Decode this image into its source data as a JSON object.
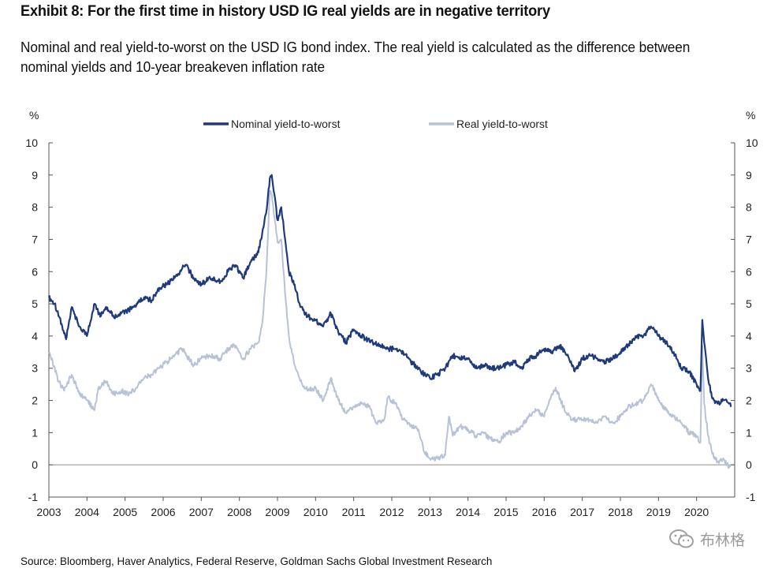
{
  "header": {
    "title": "Exhibit 8: For the first time in history USD IG real yields are in negative territory",
    "subtitle": "Nominal and real yield-to-worst on the USD IG bond index. The real yield is calculated as the difference between nominal yields and 10-year breakeven inflation rate"
  },
  "source": "Source: Bloomberg, Haver Analytics, Federal Reserve, Goldman Sachs Global Investment Research",
  "watermark": "布林格",
  "colors": {
    "nominal": "#1f3a7a",
    "real": "#b8c2d6",
    "axis": "#555555"
  },
  "chart_data": {
    "type": "line",
    "ylabel_left": "%",
    "ylabel_right": "%",
    "ylim": [
      -1,
      10
    ],
    "yticks": [
      -1,
      0,
      1,
      2,
      3,
      4,
      5,
      6,
      7,
      8,
      9,
      10
    ],
    "xlim": [
      2003,
      2021
    ],
    "xticks": [
      "2003",
      "2004",
      "2005",
      "2006",
      "2007",
      "2008",
      "2009",
      "2010",
      "2011",
      "2012",
      "2013",
      "2014",
      "2015",
      "2016",
      "2017",
      "2018",
      "2019",
      "2020"
    ],
    "legend_position": "top-center",
    "series": [
      {
        "name": "Nominal yield-to-worst",
        "x": [
          2003.0,
          2003.15,
          2003.35,
          2003.45,
          2003.6,
          2003.8,
          2004.0,
          2004.2,
          2004.35,
          2004.5,
          2004.7,
          2004.9,
          2005.1,
          2005.3,
          2005.5,
          2005.7,
          2005.9,
          2006.1,
          2006.3,
          2006.5,
          2006.6,
          2006.8,
          2007.0,
          2007.2,
          2007.5,
          2007.7,
          2007.9,
          2008.1,
          2008.3,
          2008.5,
          2008.6,
          2008.7,
          2008.8,
          2008.85,
          2008.92,
          2009.0,
          2009.1,
          2009.2,
          2009.3,
          2009.45,
          2009.6,
          2009.8,
          2010.0,
          2010.2,
          2010.4,
          2010.6,
          2010.8,
          2011.0,
          2011.2,
          2011.5,
          2011.7,
          2011.9,
          2012.1,
          2012.3,
          2012.5,
          2012.7,
          2012.85,
          2013.0,
          2013.2,
          2013.4,
          2013.6,
          2013.8,
          2014.0,
          2014.2,
          2014.4,
          2014.6,
          2014.8,
          2015.0,
          2015.2,
          2015.4,
          2015.6,
          2015.8,
          2016.0,
          2016.2,
          2016.4,
          2016.6,
          2016.8,
          2017.0,
          2017.2,
          2017.4,
          2017.6,
          2017.8,
          2018.0,
          2018.2,
          2018.4,
          2018.6,
          2018.8,
          2018.9,
          2019.0,
          2019.2,
          2019.4,
          2019.6,
          2019.8,
          2020.0,
          2020.1,
          2020.15,
          2020.2,
          2020.3,
          2020.4,
          2020.55,
          2020.7,
          2020.85,
          2020.9
        ],
        "values": [
          5.2,
          5.0,
          4.3,
          3.9,
          4.9,
          4.3,
          4.0,
          5.0,
          4.6,
          4.9,
          4.6,
          4.7,
          4.8,
          5.0,
          5.2,
          5.1,
          5.5,
          5.6,
          5.8,
          6.1,
          6.2,
          5.8,
          5.6,
          5.8,
          5.7,
          6.0,
          6.2,
          5.8,
          6.3,
          6.6,
          7.2,
          7.8,
          8.9,
          9.0,
          8.4,
          7.6,
          8.0,
          7.0,
          6.0,
          5.6,
          4.9,
          4.6,
          4.5,
          4.3,
          4.7,
          4.1,
          3.8,
          4.2,
          4.0,
          3.8,
          3.7,
          3.6,
          3.6,
          3.5,
          3.2,
          3.0,
          2.8,
          2.7,
          2.8,
          3.0,
          3.4,
          3.3,
          3.3,
          3.0,
          3.1,
          3.0,
          3.0,
          3.1,
          3.2,
          3.0,
          3.3,
          3.4,
          3.6,
          3.5,
          3.7,
          3.4,
          2.9,
          3.3,
          3.4,
          3.3,
          3.2,
          3.3,
          3.5,
          3.7,
          4.0,
          4.0,
          4.3,
          4.2,
          4.0,
          3.8,
          3.5,
          3.0,
          2.9,
          2.5,
          2.3,
          4.5,
          3.8,
          2.7,
          2.1,
          1.9,
          2.0,
          1.9,
          1.8
        ]
      },
      {
        "name": "Real yield-to-worst",
        "x": [
          2003.0,
          2003.1,
          2003.25,
          2003.4,
          2003.6,
          2003.8,
          2004.0,
          2004.2,
          2004.3,
          2004.5,
          2004.7,
          2004.9,
          2005.1,
          2005.3,
          2005.5,
          2005.7,
          2005.9,
          2006.1,
          2006.3,
          2006.5,
          2006.6,
          2006.8,
          2007.0,
          2007.2,
          2007.5,
          2007.7,
          2007.9,
          2008.1,
          2008.3,
          2008.5,
          2008.6,
          2008.7,
          2008.8,
          2008.85,
          2008.92,
          2009.0,
          2009.1,
          2009.2,
          2009.3,
          2009.45,
          2009.6,
          2009.8,
          2010.0,
          2010.2,
          2010.4,
          2010.6,
          2010.8,
          2011.0,
          2011.2,
          2011.4,
          2011.6,
          2011.8,
          2011.9,
          2012.1,
          2012.3,
          2012.5,
          2012.7,
          2012.85,
          2013.0,
          2013.2,
          2013.4,
          2013.5,
          2013.6,
          2013.8,
          2014.0,
          2014.2,
          2014.4,
          2014.6,
          2014.8,
          2015.0,
          2015.2,
          2015.4,
          2015.6,
          2015.8,
          2016.0,
          2016.2,
          2016.3,
          2016.5,
          2016.7,
          2017.0,
          2017.2,
          2017.4,
          2017.6,
          2017.8,
          2018.0,
          2018.2,
          2018.4,
          2018.6,
          2018.8,
          2018.9,
          2019.0,
          2019.2,
          2019.4,
          2019.6,
          2019.8,
          2020.0,
          2020.1,
          2020.15,
          2020.2,
          2020.3,
          2020.4,
          2020.55,
          2020.7,
          2020.8,
          2020.9
        ],
        "values": [
          3.5,
          3.2,
          2.6,
          2.3,
          2.8,
          2.2,
          2.0,
          1.7,
          2.4,
          2.6,
          2.2,
          2.3,
          2.2,
          2.4,
          2.7,
          2.8,
          3.0,
          3.2,
          3.4,
          3.6,
          3.4,
          3.1,
          3.3,
          3.4,
          3.3,
          3.6,
          3.7,
          3.3,
          3.6,
          3.8,
          4.4,
          5.8,
          8.5,
          8.4,
          7.7,
          6.9,
          7.0,
          5.3,
          4.0,
          3.1,
          2.6,
          2.3,
          2.4,
          2.0,
          2.7,
          2.0,
          1.6,
          1.8,
          1.9,
          1.8,
          1.3,
          1.4,
          2.1,
          1.9,
          1.4,
          1.2,
          1.1,
          0.4,
          0.2,
          0.2,
          0.3,
          1.5,
          0.9,
          1.2,
          1.1,
          0.9,
          1.0,
          0.8,
          0.7,
          1.0,
          1.0,
          1.2,
          1.5,
          1.7,
          1.5,
          2.2,
          2.4,
          1.8,
          1.4,
          1.4,
          1.4,
          1.3,
          1.5,
          1.3,
          1.5,
          1.8,
          1.9,
          2.0,
          2.5,
          2.3,
          2.0,
          1.7,
          1.5,
          1.3,
          1.0,
          0.9,
          0.7,
          3.7,
          1.9,
          0.9,
          0.4,
          0.1,
          0.2,
          0.0,
          -0.05
        ]
      }
    ]
  }
}
